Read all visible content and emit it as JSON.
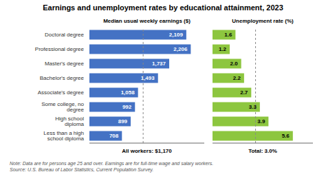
{
  "chart_data": [
    {
      "type": "bar",
      "orientation": "horizontal",
      "title": "Earnings and unemployment rates by educational attainment, 2023",
      "categories": [
        "Doctoral degree",
        "Professional degree",
        "Master's degree",
        "Bachelor's degree",
        "Associate's degree",
        "Some college, no degree",
        "High school diploma",
        "Less than a high school diploma"
      ],
      "values": [
        2109,
        2206,
        1737,
        1493,
        1058,
        992,
        899,
        708
      ],
      "value_labels": [
        "2,109",
        "2,206",
        "1,737",
        "1,493",
        "1,058",
        "992",
        "899",
        "708"
      ],
      "color": "#4472C4",
      "xlim": [
        0,
        2500
      ],
      "xlabel": "Median usual weekly earnings ($)",
      "reference_line": 1170,
      "annotation": "All workers: $1,170",
      "note": "Note: Data are for persons age 25 and over. Earnings are for full-time wage and salary workers.\nSource: U.S. Bureau of Labor Statistics, Current Population Survey.",
      "data_labels": true,
      "tick_labels": "y",
      "grid": false
    },
    {
      "type": "bar",
      "orientation": "horizontal",
      "categories": [
        "Doctoral degree",
        "Professional degree",
        "Master's degree",
        "Bachelor's degree",
        "Associate's degree",
        "Some college, no degree",
        "High school diploma",
        "Less than a high school diploma"
      ],
      "values": [
        1.6,
        1.2,
        2.0,
        2.2,
        2.7,
        3.3,
        3.9,
        5.6
      ],
      "value_labels": [
        "1.6",
        "1.2",
        "2.0",
        "2.2",
        "2.7",
        "3.3",
        "3.9",
        "5.6"
      ],
      "color": "#8DC63F",
      "xlim": [
        0,
        7.0
      ],
      "xlabel": "Unemployment rate (%)",
      "reference_line": 3.0,
      "annotation": "Total: 3.0%",
      "data_labels": true,
      "tick_labels": false,
      "grid": false
    }
  ]
}
